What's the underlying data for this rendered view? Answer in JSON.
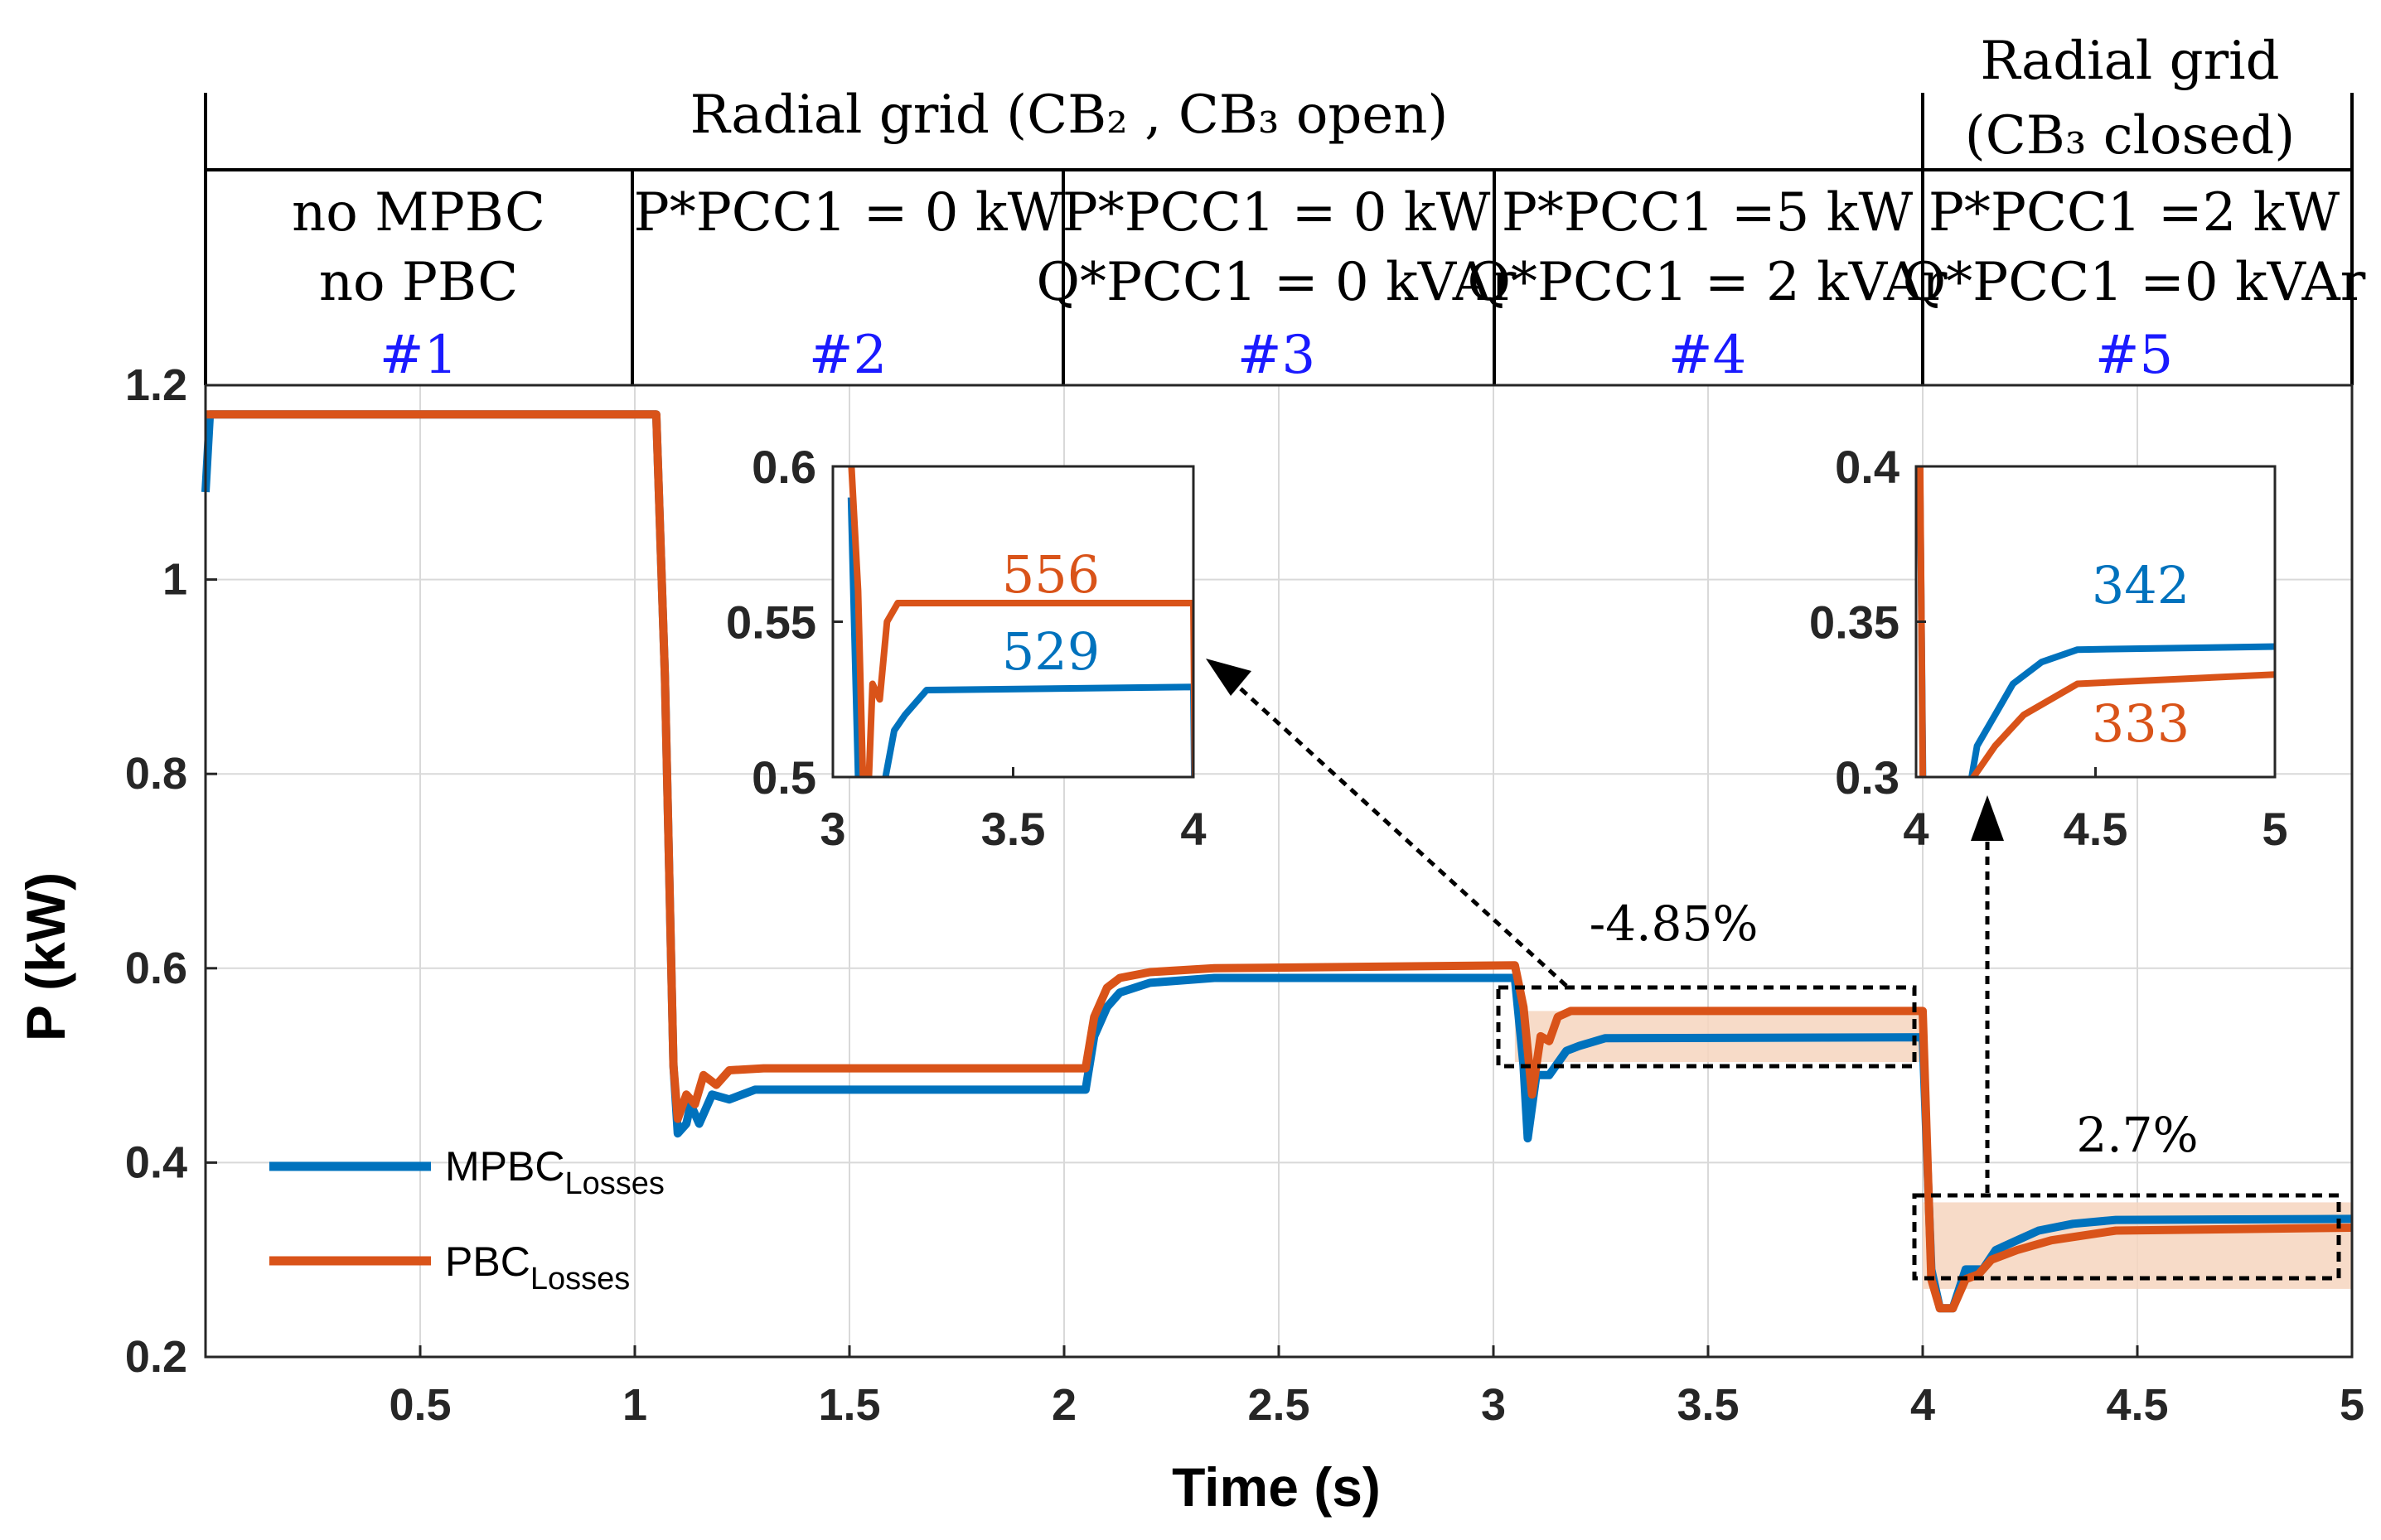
{
  "chart_data": {
    "type": "line",
    "xlabel": "Time (s)",
    "ylabel": "P (kW)",
    "xlim": [
      0,
      5
    ],
    "ylim": [
      0.2,
      1.2
    ],
    "xticks": [
      "0.5",
      "1",
      "1.5",
      "2",
      "2.5",
      "3",
      "3.5",
      "4",
      "4.5",
      "5"
    ],
    "yticks": [
      "0.2",
      "0.4",
      "0.6",
      "0.8",
      "1",
      "1.2"
    ],
    "grid": true,
    "legend_position": "bottom-left",
    "colors": {
      "mpbc": "#0072BD",
      "pbc": "#D95319",
      "fill": "#F6D5BE",
      "period_label": "#1a1aff"
    },
    "series": [
      {
        "name": "MPBC",
        "sub": "Losses",
        "color": "#0072BD",
        "points": [
          [
            0.0,
            1.09
          ],
          [
            0.01,
            1.17
          ],
          [
            1.05,
            1.17
          ],
          [
            1.07,
            0.9
          ],
          [
            1.09,
            0.5
          ],
          [
            1.1,
            0.43
          ],
          [
            1.12,
            0.44
          ],
          [
            1.13,
            0.46
          ],
          [
            1.15,
            0.44
          ],
          [
            1.18,
            0.47
          ],
          [
            1.22,
            0.465
          ],
          [
            1.28,
            0.475
          ],
          [
            2.05,
            0.475
          ],
          [
            2.07,
            0.53
          ],
          [
            2.1,
            0.56
          ],
          [
            2.13,
            0.575
          ],
          [
            2.2,
            0.585
          ],
          [
            2.35,
            0.59
          ],
          [
            3.05,
            0.59
          ],
          [
            3.07,
            0.5
          ],
          [
            3.08,
            0.425
          ],
          [
            3.1,
            0.49
          ],
          [
            3.13,
            0.49
          ],
          [
            3.17,
            0.515
          ],
          [
            3.2,
            0.52
          ],
          [
            3.26,
            0.528
          ],
          [
            4.0,
            0.529
          ],
          [
            4.02,
            0.29
          ],
          [
            4.04,
            0.25
          ],
          [
            4.07,
            0.25
          ],
          [
            4.1,
            0.29
          ],
          [
            4.14,
            0.29
          ],
          [
            4.17,
            0.31
          ],
          [
            4.22,
            0.32
          ],
          [
            4.27,
            0.33
          ],
          [
            4.35,
            0.337
          ],
          [
            4.45,
            0.341
          ],
          [
            5.0,
            0.342
          ]
        ]
      },
      {
        "name": "PBC",
        "sub": "Losses",
        "color": "#D95319",
        "points": [
          [
            0.0,
            1.17
          ],
          [
            1.05,
            1.17
          ],
          [
            1.07,
            0.9
          ],
          [
            1.09,
            0.5
          ],
          [
            1.1,
            0.445
          ],
          [
            1.12,
            0.47
          ],
          [
            1.14,
            0.46
          ],
          [
            1.16,
            0.49
          ],
          [
            1.19,
            0.48
          ],
          [
            1.22,
            0.495
          ],
          [
            1.3,
            0.497
          ],
          [
            2.05,
            0.497
          ],
          [
            2.07,
            0.55
          ],
          [
            2.1,
            0.58
          ],
          [
            2.13,
            0.59
          ],
          [
            2.2,
            0.596
          ],
          [
            2.35,
            0.6
          ],
          [
            3.05,
            0.603
          ],
          [
            3.07,
            0.56
          ],
          [
            3.09,
            0.47
          ],
          [
            3.11,
            0.53
          ],
          [
            3.13,
            0.525
          ],
          [
            3.15,
            0.55
          ],
          [
            3.18,
            0.556
          ],
          [
            4.0,
            0.556
          ],
          [
            4.02,
            0.28
          ],
          [
            4.04,
            0.25
          ],
          [
            4.07,
            0.25
          ],
          [
            4.1,
            0.28
          ],
          [
            4.13,
            0.285
          ],
          [
            4.16,
            0.3
          ],
          [
            4.22,
            0.31
          ],
          [
            4.3,
            0.32
          ],
          [
            4.45,
            0.33
          ],
          [
            5.0,
            0.333
          ]
        ]
      }
    ],
    "header": {
      "top_left": "Radial grid (CB₂ , CB₃ open)",
      "top_right_line1": "Radial grid",
      "top_right_line2": "(CB₃ closed)",
      "periods": [
        {
          "id": "#1",
          "line1": "no MPBC",
          "line2": "no PBC"
        },
        {
          "id": "#2",
          "line1": "P*PCC1 = 0 kW",
          "line2": ""
        },
        {
          "id": "#3",
          "line1": "P*PCC1 = 0 kW",
          "line2": "Q*PCC1 = 0 kVAr"
        },
        {
          "id": "#4",
          "line1": "P*PCC1 =5 kW",
          "line2": "Q*PCC1 = 2 kVAr"
        },
        {
          "id": "#5",
          "line1": "P*PCC1 =2 kW",
          "line2": "Q*PCC1 =0 kVAr"
        }
      ]
    },
    "annotations": [
      {
        "text": "-4.85%",
        "x": 3.42,
        "y": 0.64
      },
      {
        "text": "2.7%",
        "x": 4.5,
        "y": 0.415
      }
    ],
    "inset_1": {
      "xlim": [
        3,
        4
      ],
      "ylim": [
        0.5,
        0.6
      ],
      "xticks": [
        "3",
        "3.5",
        "4"
      ],
      "yticks": [
        "0.5",
        "0.55",
        "0.6"
      ],
      "label_pbc": "556",
      "label_mpbc": "529"
    },
    "inset_2": {
      "xlim": [
        4,
        5
      ],
      "ylim": [
        0.3,
        0.4
      ],
      "xticks": [
        "4",
        "4.5",
        "5"
      ],
      "yticks": [
        "0.3",
        "0.35",
        "0.4"
      ],
      "label_mpbc": "342",
      "label_pbc": "333"
    }
  }
}
